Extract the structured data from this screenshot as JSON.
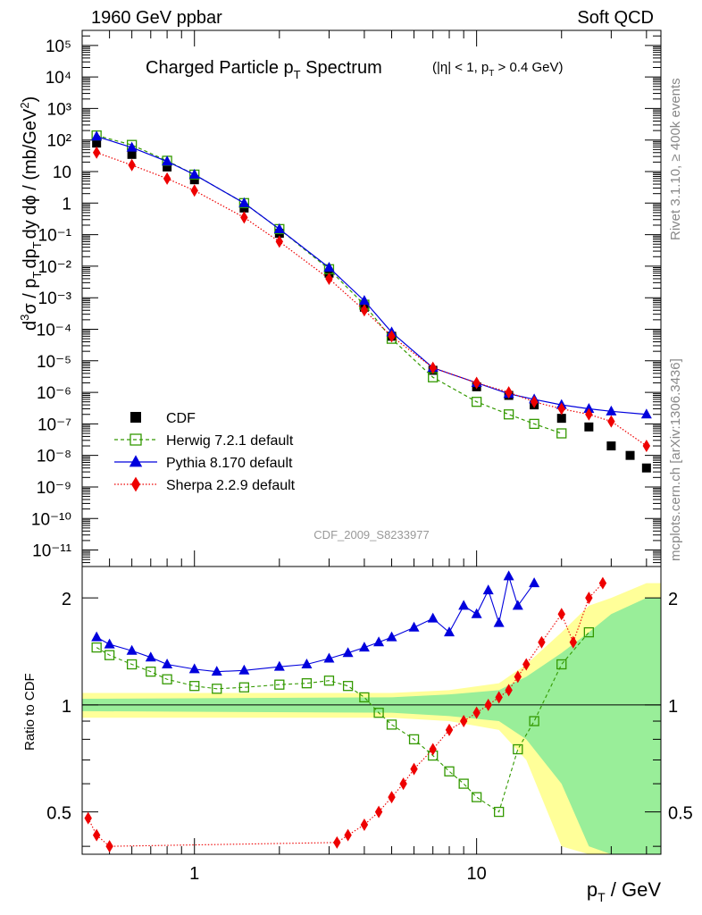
{
  "header": {
    "left": "1960 GeV ppbar",
    "right": "Soft QCD"
  },
  "side_labels": {
    "rivet": "Rivet 3.1.10, ≥ 400k events",
    "mcplots": "mcplots.cern.ch [arXiv:1306.3436]"
  },
  "chart_data": [
    {
      "type": "scatter",
      "title": "Charged Particle p_T Spectrum",
      "title_main": "Charged Particle p",
      "title_sub": "T",
      "title_rest": " Spectrum",
      "title_cut": "(|η| < 1, p_T > 0.4 GeV)",
      "title_cut_a": "(|η| < 1, p",
      "title_cut_sub": "T",
      "title_cut_b": " > 0.4 GeV)",
      "watermark": "CDF_2009_S8233977",
      "ylabel": "d³σ / p_T dp_T dy dϕ / (mb/GeV²)",
      "ylabel_parts": [
        "d",
        "3",
        "σ / p",
        "T",
        "dp",
        "T",
        "dy dϕ / (mb/GeV",
        "2",
        ")"
      ],
      "xscale": "log",
      "yscale": "log",
      "xlim": [
        0.4,
        45
      ],
      "ylim": [
        3e-12,
        300000.0
      ],
      "ytick_labels": [
        "10⁻¹¹",
        "10⁻¹⁰",
        "10⁻⁹",
        "10⁻⁸",
        "10⁻⁷",
        "10⁻⁶",
        "10⁻⁵",
        "10⁻⁴",
        "10⁻³",
        "10⁻²",
        "10⁻¹",
        "1",
        "10",
        "10²",
        "10³",
        "10⁴",
        "10⁵"
      ],
      "legend": [
        {
          "name": "CDF",
          "color": "#000000",
          "marker": "square"
        },
        {
          "name": "Herwig 7.2.1 default",
          "color": "#339900",
          "marker": "open-square"
        },
        {
          "name": "Pythia 8.170 default",
          "color": "#0000dd",
          "marker": "triangle"
        },
        {
          "name": "Sherpa 2.2.9 default",
          "color": "#ee0000",
          "marker": "diamond"
        }
      ],
      "series": [
        {
          "name": "CDF",
          "x": [
            0.45,
            0.6,
            0.8,
            1.0,
            1.5,
            2.0,
            3.0,
            4.0,
            5.0,
            7.0,
            10.0,
            13.0,
            16.0,
            20.0,
            25.0,
            30.0,
            35.0,
            40.0
          ],
          "y": [
            80,
            35,
            14,
            5.5,
            0.7,
            0.11,
            0.006,
            0.0005,
            6e-05,
            5e-06,
            1.5e-06,
            8e-07,
            4e-07,
            1.5e-07,
            8e-08,
            2e-08,
            1e-08,
            4e-09
          ]
        },
        {
          "name": "Herwig 7.2.1 default",
          "x": [
            0.45,
            0.6,
            0.8,
            1.0,
            1.5,
            2.0,
            3.0,
            4.0,
            5.0,
            7.0,
            10.0,
            13.0,
            16.0,
            20.0
          ],
          "y": [
            140,
            70,
            22,
            8,
            1.0,
            0.15,
            0.008,
            0.0006,
            5e-05,
            3e-06,
            5e-07,
            2e-07,
            1e-07,
            5e-08
          ]
        },
        {
          "name": "Pythia 8.170 default",
          "x": [
            0.45,
            0.6,
            0.8,
            1.0,
            1.5,
            2.0,
            3.0,
            4.0,
            5.0,
            7.0,
            10.0,
            13.0,
            16.0,
            20.0,
            25.0,
            30.0,
            40.0
          ],
          "y": [
            130,
            58,
            21,
            8,
            1.0,
            0.15,
            0.009,
            0.0008,
            8e-05,
            6e-06,
            2e-06,
            9e-07,
            6e-07,
            4e-07,
            3e-07,
            2.5e-07,
            2e-07
          ]
        },
        {
          "name": "Sherpa 2.2.9 default",
          "x": [
            0.45,
            0.6,
            0.8,
            1.0,
            1.5,
            2.0,
            3.0,
            4.0,
            5.0,
            7.0,
            10.0,
            13.0,
            16.0,
            20.0,
            25.0,
            30.0,
            40.0
          ],
          "y": [
            40,
            16,
            6,
            2.5,
            0.35,
            0.06,
            0.004,
            0.0004,
            6e-05,
            6e-06,
            2e-06,
            1e-06,
            5e-07,
            3e-07,
            2e-07,
            1.2e-07,
            2e-08
          ]
        }
      ]
    },
    {
      "type": "scatter",
      "ylabel": "Ratio to CDF",
      "xlabel": "p_T / GeV",
      "xlabel_main": "p",
      "xlabel_sub": "T",
      "xlabel_rest": " / GeV",
      "xscale": "log",
      "yscale": "log",
      "xlim": [
        0.4,
        45
      ],
      "ylim": [
        0.38,
        2.45
      ],
      "xtick_labels": [
        "1",
        "10"
      ],
      "ytick_labels": [
        "0.5",
        "1",
        "2"
      ],
      "reference_line": 1,
      "series": [
        {
          "name": "Herwig 7.2.1 default",
          "x": [
            0.45,
            0.5,
            0.6,
            0.7,
            0.8,
            1.0,
            1.2,
            1.5,
            2.0,
            2.5,
            3.0,
            3.5,
            4.0,
            4.5,
            5.0,
            6.0,
            7.0,
            8.0,
            9.0,
            10.0,
            12.0,
            14.0,
            16.0,
            20.0,
            25.0
          ],
          "y": [
            1.45,
            1.38,
            1.3,
            1.24,
            1.18,
            1.13,
            1.11,
            1.12,
            1.14,
            1.15,
            1.17,
            1.13,
            1.05,
            0.95,
            0.88,
            0.8,
            0.72,
            0.65,
            0.6,
            0.55,
            0.5,
            0.75,
            0.9,
            1.3,
            1.6
          ]
        },
        {
          "name": "Pythia 8.170 default",
          "x": [
            0.45,
            0.5,
            0.6,
            0.7,
            0.8,
            1.0,
            1.2,
            1.5,
            2.0,
            2.5,
            3.0,
            3.5,
            4.0,
            4.5,
            5.0,
            6.0,
            7.0,
            8.0,
            9.0,
            10.0,
            11.0,
            12.0,
            13.0,
            14.0,
            16.0
          ],
          "y": [
            1.55,
            1.48,
            1.42,
            1.36,
            1.3,
            1.26,
            1.24,
            1.25,
            1.28,
            1.3,
            1.35,
            1.4,
            1.45,
            1.5,
            1.55,
            1.65,
            1.75,
            1.6,
            1.9,
            1.8,
            2.1,
            1.7,
            2.3,
            1.9,
            2.2
          ]
        },
        {
          "name": "Sherpa 2.2.9 default",
          "x": [
            0.42,
            0.45,
            0.5,
            3.2,
            3.5,
            4.0,
            4.5,
            5.0,
            5.5,
            6.0,
            7.0,
            8.0,
            9.0,
            10.0,
            11.0,
            12.0,
            13.0,
            14.0,
            15.0,
            17.0,
            20.0,
            22.0,
            25.0,
            28.0
          ],
          "y": [
            0.48,
            0.43,
            0.4,
            0.41,
            0.43,
            0.46,
            0.5,
            0.55,
            0.6,
            0.66,
            0.75,
            0.85,
            0.9,
            0.95,
            1.0,
            1.05,
            1.1,
            1.2,
            1.3,
            1.5,
            1.8,
            1.5,
            2.0,
            2.2
          ]
        }
      ],
      "bands": [
        {
          "name": "stat",
          "color": "#99ee99",
          "x": [
            0.4,
            5,
            8,
            12,
            15,
            20,
            25,
            30,
            40,
            45
          ],
          "half_width": [
            0.04,
            0.05,
            0.07,
            0.1,
            0.2,
            0.4,
            0.6,
            0.8,
            1.0,
            1.0
          ]
        },
        {
          "name": "total",
          "color": "#ffff99",
          "x": [
            0.4,
            5,
            8,
            12,
            15,
            20,
            25,
            30,
            40,
            45
          ],
          "half_width": [
            0.08,
            0.08,
            0.1,
            0.15,
            0.3,
            0.6,
            0.9,
            1.0,
            1.2,
            1.2
          ]
        }
      ]
    }
  ]
}
